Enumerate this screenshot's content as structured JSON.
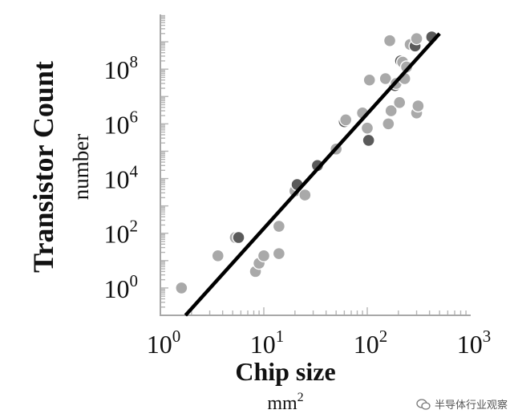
{
  "chart_data": {
    "type": "scatter",
    "title": "",
    "xlabel": "Chip size",
    "xunit_base": "mm",
    "xunit_exp": "2",
    "ylabel": "Transistor Count",
    "yunit": "number",
    "x_scale": "log",
    "y_scale": "log",
    "xlim": [
      1,
      1000
    ],
    "ylim": [
      0.1,
      10000000000
    ],
    "x_ticks": [
      {
        "base": "10",
        "exp": "0",
        "value": 1
      },
      {
        "base": "10",
        "exp": "1",
        "value": 10
      },
      {
        "base": "10",
        "exp": "2",
        "value": 100
      },
      {
        "base": "10",
        "exp": "3",
        "value": 1000
      }
    ],
    "y_ticks": [
      {
        "base": "10",
        "exp": "0",
        "value": 1
      },
      {
        "base": "10",
        "exp": "2",
        "value": 100
      },
      {
        "base": "10",
        "exp": "4",
        "value": 10000
      },
      {
        "base": "10",
        "exp": "6",
        "value": 1000000
      },
      {
        "base": "10",
        "exp": "8",
        "value": 100000000
      }
    ],
    "grid": false,
    "legend": "none",
    "point_colors": {
      "light": "#a9a9a9",
      "dark": "#5a5a5a"
    },
    "fit_line_color": "#000000",
    "fit_line": {
      "x": [
        1.75,
        500
      ],
      "y": [
        0.1,
        2000000000
      ]
    },
    "points": [
      {
        "x": 1.6,
        "y": 1,
        "shade": "light"
      },
      {
        "x": 3.6,
        "y": 15,
        "shade": "light"
      },
      {
        "x": 5.3,
        "y": 70,
        "shade": "light"
      },
      {
        "x": 5.7,
        "y": 70,
        "shade": "dark"
      },
      {
        "x": 8.3,
        "y": 4,
        "shade": "light"
      },
      {
        "x": 9,
        "y": 8,
        "shade": "light"
      },
      {
        "x": 10,
        "y": 15,
        "shade": "light"
      },
      {
        "x": 14,
        "y": 18,
        "shade": "light"
      },
      {
        "x": 14,
        "y": 180,
        "shade": "light"
      },
      {
        "x": 20,
        "y": 3500,
        "shade": "light"
      },
      {
        "x": 21,
        "y": 6000,
        "shade": "dark"
      },
      {
        "x": 25,
        "y": 2500,
        "shade": "light"
      },
      {
        "x": 33,
        "y": 30000,
        "shade": "dark"
      },
      {
        "x": 50,
        "y": 120000,
        "shade": "light"
      },
      {
        "x": 60,
        "y": 1200000,
        "shade": "dark"
      },
      {
        "x": 62,
        "y": 1400000,
        "shade": "light"
      },
      {
        "x": 90,
        "y": 2500000,
        "shade": "light"
      },
      {
        "x": 100,
        "y": 700000,
        "shade": "light"
      },
      {
        "x": 103,
        "y": 250000,
        "shade": "dark"
      },
      {
        "x": 105,
        "y": 40000000,
        "shade": "light"
      },
      {
        "x": 150,
        "y": 45000000,
        "shade": "light"
      },
      {
        "x": 160,
        "y": 1000000,
        "shade": "light"
      },
      {
        "x": 165,
        "y": 1100000000,
        "shade": "light"
      },
      {
        "x": 170,
        "y": 3000000,
        "shade": "light"
      },
      {
        "x": 185,
        "y": 25000000,
        "shade": "dark"
      },
      {
        "x": 190,
        "y": 30000000,
        "shade": "light"
      },
      {
        "x": 205,
        "y": 6000000,
        "shade": "light"
      },
      {
        "x": 210,
        "y": 200000000,
        "shade": "dark"
      },
      {
        "x": 220,
        "y": 180000000,
        "shade": "light"
      },
      {
        "x": 230,
        "y": 45000000,
        "shade": "light"
      },
      {
        "x": 240,
        "y": 120000000,
        "shade": "light"
      },
      {
        "x": 260,
        "y": 800000000,
        "shade": "light"
      },
      {
        "x": 290,
        "y": 700000000,
        "shade": "dark"
      },
      {
        "x": 300,
        "y": 1300000000,
        "shade": "light"
      },
      {
        "x": 300,
        "y": 2500000,
        "shade": "light"
      },
      {
        "x": 310,
        "y": 4500000,
        "shade": "light"
      },
      {
        "x": 420,
        "y": 1500000000,
        "shade": "dark"
      }
    ]
  },
  "watermark": {
    "text": "半导体行业观察"
  }
}
